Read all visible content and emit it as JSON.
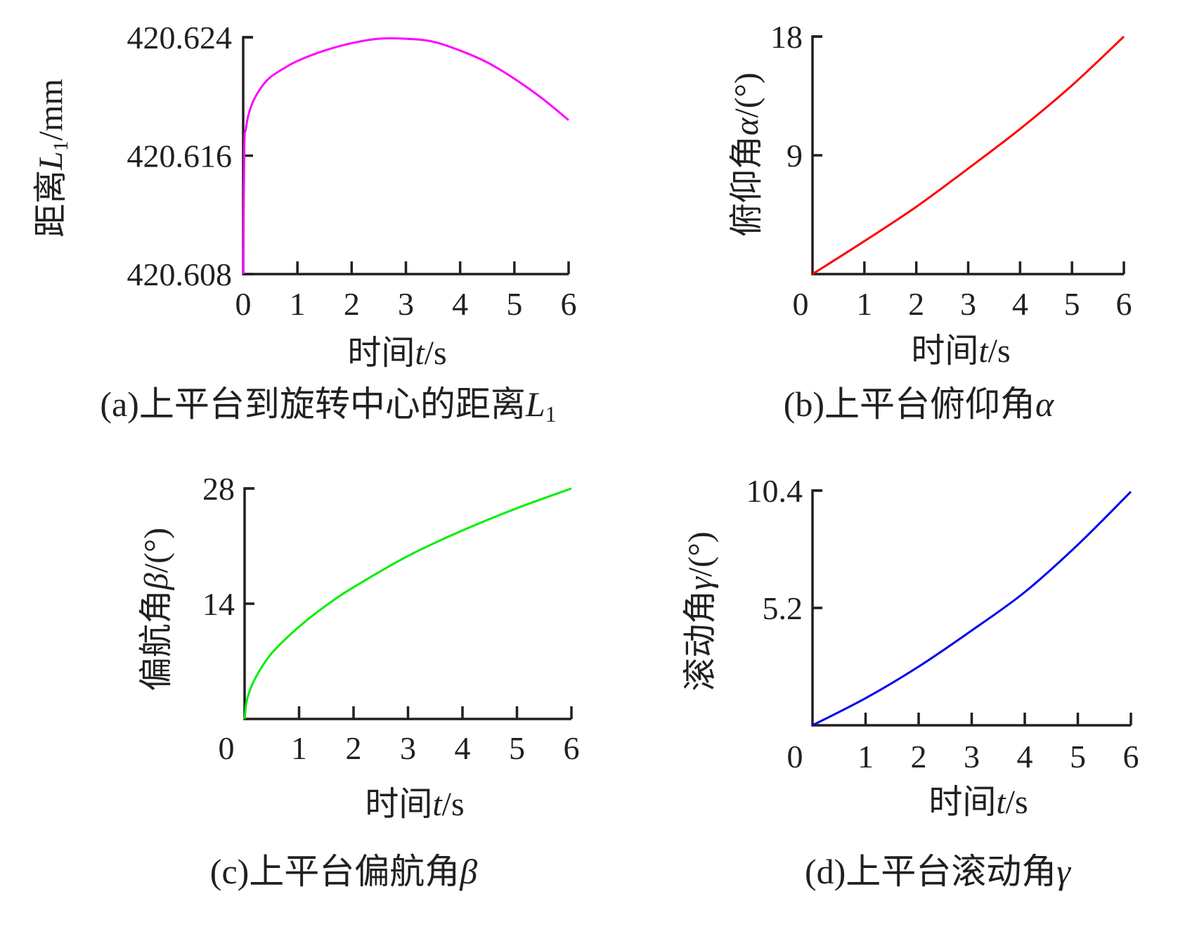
{
  "chart_data": [
    {
      "id": "a",
      "type": "line",
      "caption": "(a)上平台到旋转中心的距离",
      "caption_symbol": "L",
      "caption_sub": "1",
      "xlabel_cn": "时间",
      "xlabel_sym": "t",
      "xlabel_unit": "/s",
      "ylabel_cn": "距离",
      "ylabel_sym": "L",
      "ylabel_sub": "1",
      "ylabel_unit": "/mm",
      "xlim": [
        0,
        6
      ],
      "ylim": [
        420.608,
        420.624
      ],
      "xticks": [
        "0",
        "1",
        "2",
        "3",
        "4",
        "5",
        "6"
      ],
      "yticks": [
        {
          "v": 420.608,
          "label": "420.608"
        },
        {
          "v": 420.616,
          "label": "420.616"
        },
        {
          "v": 420.624,
          "label": "420.624"
        }
      ],
      "color": "#ff00ff",
      "x": [
        0,
        0.02,
        0.05,
        0.1,
        0.2,
        0.35,
        0.5,
        0.75,
        1,
        1.5,
        2,
        2.5,
        3,
        3.5,
        4,
        4.5,
        5,
        5.5,
        6
      ],
      "y": [
        420.608,
        420.6165,
        420.6178,
        420.6188,
        420.6198,
        420.6207,
        420.6213,
        420.6219,
        420.6224,
        420.6231,
        420.6236,
        420.6239,
        420.6239,
        420.6237,
        420.6231,
        420.6223,
        420.6212,
        420.6199,
        420.6184
      ]
    },
    {
      "id": "b",
      "type": "line",
      "caption": "(b)上平台俯仰角",
      "caption_symbol": "α",
      "xlabel_cn": "时间",
      "xlabel_sym": "t",
      "xlabel_unit": "/s",
      "ylabel_cn": "俯仰角",
      "ylabel_sym": "α",
      "ylabel_unit": "/(°)",
      "xlim": [
        0,
        6
      ],
      "ylim": [
        0,
        18
      ],
      "xticks": [
        "0",
        "1",
        "2",
        "3",
        "4",
        "5",
        "6"
      ],
      "yticks": [
        {
          "v": 9,
          "label": "9"
        },
        {
          "v": 18,
          "label": "18"
        }
      ],
      "color": "#ff0000",
      "x": [
        0,
        1,
        2,
        3,
        4,
        5,
        6
      ],
      "y": [
        0,
        2.5,
        5.1,
        8.0,
        11.0,
        14.3,
        18.0
      ]
    },
    {
      "id": "c",
      "type": "line",
      "caption": "(c)上平台偏航角",
      "caption_symbol": "β",
      "xlabel_cn": "时间",
      "xlabel_sym": "t",
      "xlabel_unit": "/s",
      "ylabel_cn": "偏航角",
      "ylabel_sym": "β",
      "ylabel_unit": "/(°)",
      "xlim": [
        0,
        6
      ],
      "ylim": [
        0,
        28
      ],
      "xticks": [
        "0",
        "1",
        "2",
        "3",
        "4",
        "5",
        "6"
      ],
      "yticks": [
        {
          "v": 14,
          "label": "14"
        },
        {
          "v": 28,
          "label": "28"
        }
      ],
      "color": "#00ee00",
      "x": [
        0,
        0.05,
        0.2,
        0.5,
        1,
        1.5,
        2,
        3,
        4,
        5,
        6
      ],
      "y": [
        0,
        2.5,
        5,
        8,
        11.2,
        13.8,
        16,
        19.8,
        22.9,
        25.6,
        28
      ]
    },
    {
      "id": "d",
      "type": "line",
      "caption": "(d)上平台滚动角",
      "caption_symbol": "γ",
      "xlabel_cn": "时间",
      "xlabel_sym": "t",
      "xlabel_unit": "/s",
      "ylabel_cn": "滚动角",
      "ylabel_sym": "γ",
      "ylabel_unit": "/(°)",
      "xlim": [
        0,
        6
      ],
      "ylim": [
        0,
        10.4
      ],
      "xticks": [
        "0",
        "1",
        "2",
        "3",
        "4",
        "5",
        "6"
      ],
      "yticks": [
        {
          "v": 5.2,
          "label": "5.2"
        },
        {
          "v": 10.4,
          "label": "10.4"
        }
      ],
      "color": "#0000ee",
      "x": [
        0,
        1,
        2,
        3,
        4,
        5,
        6
      ],
      "y": [
        0,
        1.2,
        2.6,
        4.2,
        5.9,
        8.0,
        10.35
      ]
    }
  ]
}
